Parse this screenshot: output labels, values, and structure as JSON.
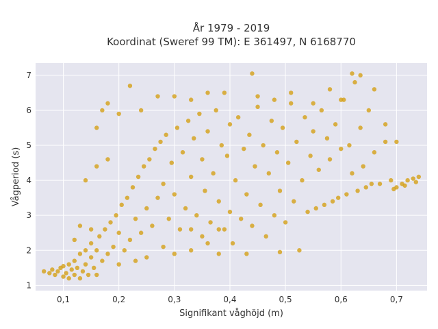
{
  "chart_data": {
    "type": "scatter",
    "title_line1": "År 1979 - 2019",
    "title_line2": "Koordinat (Sweref 99 TM): E 361497, N 6168770",
    "xlabel": "Signifikant våghöjd (m)",
    "ylabel": "Vågperiod (s)",
    "xlim": [
      0.05,
      0.755
    ],
    "ylim": [
      0.85,
      7.35
    ],
    "xticks": [
      {
        "value": 0.1,
        "label": "0,1"
      },
      {
        "value": 0.2,
        "label": "0,2"
      },
      {
        "value": 0.3,
        "label": "0,3"
      },
      {
        "value": 0.4,
        "label": "0,4"
      },
      {
        "value": 0.5,
        "label": "0,5"
      },
      {
        "value": 0.6,
        "label": "0,6"
      },
      {
        "value": 0.7,
        "label": "0,7"
      }
    ],
    "yticks": [
      {
        "value": 1,
        "label": "1"
      },
      {
        "value": 2,
        "label": "2"
      },
      {
        "value": 3,
        "label": "3"
      },
      {
        "value": 4,
        "label": "4"
      },
      {
        "value": 5,
        "label": "5"
      },
      {
        "value": 6,
        "label": "6"
      },
      {
        "value": 7,
        "label": "7"
      }
    ],
    "grid": true,
    "marker_color": "#d4a017",
    "background_color": "#e5e5ef",
    "points": [
      [
        0.065,
        1.4
      ],
      [
        0.075,
        1.35
      ],
      [
        0.08,
        1.45
      ],
      [
        0.085,
        1.3
      ],
      [
        0.09,
        1.4
      ],
      [
        0.095,
        1.5
      ],
      [
        0.1,
        1.25
      ],
      [
        0.1,
        1.55
      ],
      [
        0.105,
        1.35
      ],
      [
        0.11,
        1.2
      ],
      [
        0.11,
        1.6
      ],
      [
        0.115,
        1.45
      ],
      [
        0.12,
        1.3
      ],
      [
        0.12,
        1.7
      ],
      [
        0.125,
        1.5
      ],
      [
        0.13,
        1.2
      ],
      [
        0.13,
        1.9
      ],
      [
        0.135,
        1.4
      ],
      [
        0.14,
        1.6
      ],
      [
        0.14,
        2.0
      ],
      [
        0.145,
        1.3
      ],
      [
        0.15,
        1.8
      ],
      [
        0.15,
        2.2
      ],
      [
        0.155,
        1.5
      ],
      [
        0.16,
        1.3
      ],
      [
        0.16,
        2.0
      ],
      [
        0.165,
        2.4
      ],
      [
        0.17,
        1.7
      ],
      [
        0.175,
        2.6
      ],
      [
        0.18,
        1.9
      ],
      [
        0.185,
        2.8
      ],
      [
        0.19,
        2.1
      ],
      [
        0.195,
        3.0
      ],
      [
        0.2,
        1.6
      ],
      [
        0.2,
        2.5
      ],
      [
        0.205,
        3.3
      ],
      [
        0.21,
        2.0
      ],
      [
        0.215,
        3.5
      ],
      [
        0.22,
        2.3
      ],
      [
        0.225,
        3.8
      ],
      [
        0.23,
        1.7
      ],
      [
        0.23,
        2.9
      ],
      [
        0.235,
        4.1
      ],
      [
        0.24,
        2.5
      ],
      [
        0.245,
        4.4
      ],
      [
        0.25,
        1.8
      ],
      [
        0.25,
        3.2
      ],
      [
        0.255,
        4.6
      ],
      [
        0.26,
        2.7
      ],
      [
        0.265,
        4.9
      ],
      [
        0.27,
        3.5
      ],
      [
        0.275,
        5.1
      ],
      [
        0.28,
        2.1
      ],
      [
        0.28,
        3.9
      ],
      [
        0.285,
        5.3
      ],
      [
        0.29,
        2.9
      ],
      [
        0.295,
        4.5
      ],
      [
        0.3,
        1.9
      ],
      [
        0.3,
        3.6
      ],
      [
        0.305,
        5.5
      ],
      [
        0.31,
        2.6
      ],
      [
        0.315,
        4.8
      ],
      [
        0.32,
        3.2
      ],
      [
        0.325,
        5.7
      ],
      [
        0.33,
        2.0
      ],
      [
        0.33,
        4.1
      ],
      [
        0.335,
        5.2
      ],
      [
        0.34,
        3.0
      ],
      [
        0.345,
        5.9
      ],
      [
        0.35,
        2.4
      ],
      [
        0.35,
        4.6
      ],
      [
        0.355,
        3.7
      ],
      [
        0.36,
        5.4
      ],
      [
        0.365,
        2.8
      ],
      [
        0.37,
        4.2
      ],
      [
        0.375,
        6.0
      ],
      [
        0.38,
        1.9
      ],
      [
        0.38,
        3.4
      ],
      [
        0.385,
        5.0
      ],
      [
        0.39,
        2.6
      ],
      [
        0.395,
        4.7
      ],
      [
        0.4,
        3.1
      ],
      [
        0.4,
        5.6
      ],
      [
        0.405,
        2.2
      ],
      [
        0.41,
        4.0
      ],
      [
        0.415,
        5.8
      ],
      [
        0.42,
        2.9
      ],
      [
        0.425,
        4.9
      ],
      [
        0.43,
        1.9
      ],
      [
        0.43,
        3.6
      ],
      [
        0.435,
        5.3
      ],
      [
        0.44,
        2.7
      ],
      [
        0.445,
        4.4
      ],
      [
        0.45,
        6.1
      ],
      [
        0.455,
        3.3
      ],
      [
        0.46,
        5.0
      ],
      [
        0.465,
        2.4
      ],
      [
        0.47,
        4.2
      ],
      [
        0.475,
        5.7
      ],
      [
        0.48,
        3.0
      ],
      [
        0.485,
        4.8
      ],
      [
        0.49,
        1.95
      ],
      [
        0.49,
        3.7
      ],
      [
        0.495,
        5.5
      ],
      [
        0.5,
        2.8
      ],
      [
        0.505,
        4.5
      ],
      [
        0.51,
        6.2
      ],
      [
        0.515,
        3.4
      ],
      [
        0.52,
        5.1
      ],
      [
        0.525,
        2.0
      ],
      [
        0.53,
        4.0
      ],
      [
        0.535,
        5.8
      ],
      [
        0.54,
        3.1
      ],
      [
        0.545,
        4.7
      ],
      [
        0.55,
        5.4
      ],
      [
        0.555,
        3.2
      ],
      [
        0.56,
        4.3
      ],
      [
        0.565,
        6.0
      ],
      [
        0.57,
        3.3
      ],
      [
        0.575,
        5.2
      ],
      [
        0.58,
        4.6
      ],
      [
        0.585,
        3.4
      ],
      [
        0.59,
        5.6
      ],
      [
        0.595,
        3.5
      ],
      [
        0.6,
        4.9
      ],
      [
        0.605,
        6.3
      ],
      [
        0.61,
        3.6
      ],
      [
        0.615,
        5.0
      ],
      [
        0.62,
        4.2
      ],
      [
        0.625,
        6.8
      ],
      [
        0.63,
        3.7
      ],
      [
        0.635,
        5.5
      ],
      [
        0.64,
        4.4
      ],
      [
        0.645,
        3.8
      ],
      [
        0.65,
        6.0
      ],
      [
        0.655,
        3.9
      ],
      [
        0.66,
        4.8
      ],
      [
        0.67,
        3.9
      ],
      [
        0.68,
        5.1
      ],
      [
        0.69,
        4.0
      ],
      [
        0.7,
        3.8
      ],
      [
        0.71,
        3.9
      ],
      [
        0.72,
        4.0
      ],
      [
        0.73,
        4.05
      ],
      [
        0.74,
        4.1
      ],
      [
        0.735,
        3.95
      ],
      [
        0.715,
        3.85
      ],
      [
        0.695,
        3.75
      ],
      [
        0.16,
        5.5
      ],
      [
        0.17,
        6.0
      ],
      [
        0.18,
        6.2
      ],
      [
        0.2,
        5.9
      ],
      [
        0.22,
        6.7
      ],
      [
        0.24,
        6.0
      ],
      [
        0.27,
        6.4
      ],
      [
        0.3,
        6.4
      ],
      [
        0.33,
        6.3
      ],
      [
        0.36,
        6.5
      ],
      [
        0.39,
        6.5
      ],
      [
        0.44,
        7.05
      ],
      [
        0.45,
        6.4
      ],
      [
        0.48,
        6.3
      ],
      [
        0.51,
        6.5
      ],
      [
        0.55,
        6.2
      ],
      [
        0.58,
        6.6
      ],
      [
        0.6,
        6.3
      ],
      [
        0.62,
        7.05
      ],
      [
        0.635,
        7.0
      ],
      [
        0.66,
        6.6
      ],
      [
        0.68,
        5.6
      ],
      [
        0.7,
        5.1
      ],
      [
        0.14,
        4.0
      ],
      [
        0.13,
        2.7
      ],
      [
        0.16,
        4.4
      ],
      [
        0.18,
        4.6
      ],
      [
        0.12,
        2.3
      ],
      [
        0.15,
        2.6
      ],
      [
        0.33,
        2.6
      ],
      [
        0.36,
        2.2
      ],
      [
        0.38,
        2.6
      ]
    ]
  }
}
